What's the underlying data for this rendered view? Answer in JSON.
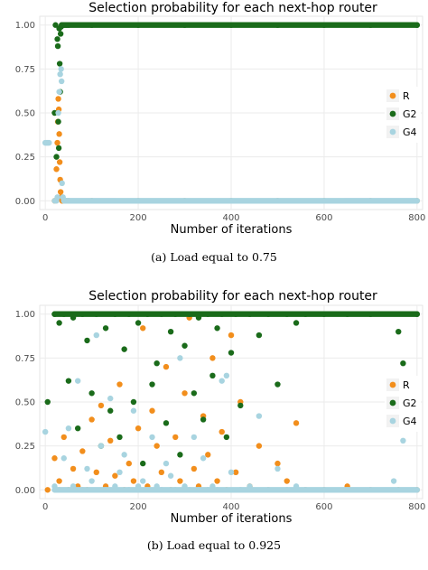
{
  "chart_data": [
    {
      "type": "scatter",
      "title": "Selection probability for each next-hop router",
      "xlabel": "Number of iterations",
      "ylabel": "",
      "xlim": [
        -12,
        812
      ],
      "ylim": [
        -0.05,
        1.05
      ],
      "xticks": [
        "0",
        "200",
        "400",
        "600",
        "800"
      ],
      "yticks": [
        "0.00",
        "0.25",
        "0.50",
        "0.75",
        "1.00"
      ],
      "legend_position": "right",
      "grid": true,
      "caption": "(a) Load equal to 0.75",
      "series": [
        {
          "name": "R",
          "color": "#f28e1c",
          "x": [
            20,
            24,
            26,
            27,
            28,
            29,
            30,
            31,
            32,
            33,
            34,
            35,
            36,
            37,
            38,
            40,
            45,
            50,
            100,
            200,
            300,
            400,
            500,
            600,
            700,
            800
          ],
          "y": [
            0.0,
            0.18,
            0.33,
            0.45,
            0.58,
            0.52,
            0.38,
            0.22,
            0.12,
            0.05,
            0.02,
            0.01,
            0.0,
            0.0,
            0.0,
            0.0,
            0.0,
            0.0,
            0.0,
            0.0,
            0.0,
            0.0,
            0.0,
            0.0,
            0.0,
            0.0
          ]
        },
        {
          "name": "G2",
          "color": "#1a6b1a",
          "x": [
            20,
            22,
            24,
            26,
            27,
            28,
            29,
            30,
            31,
            32,
            33,
            34,
            35,
            36,
            38,
            40,
            45,
            50,
            100,
            200,
            300,
            400,
            500,
            600,
            700,
            800
          ],
          "y": [
            0.5,
            1.0,
            0.25,
            0.92,
            0.88,
            0.45,
            0.3,
            0.98,
            0.78,
            0.62,
            0.95,
            0.99,
            1.0,
            1.0,
            1.0,
            1.0,
            1.0,
            1.0,
            1.0,
            1.0,
            1.0,
            1.0,
            1.0,
            1.0,
            1.0,
            1.0
          ]
        },
        {
          "name": "G4",
          "color": "#a8d4e0",
          "x": [
            0,
            2,
            4,
            6,
            8,
            20,
            24,
            26,
            28,
            30,
            32,
            34,
            35,
            36,
            38,
            40,
            45,
            50,
            100,
            200,
            300,
            400,
            500,
            600,
            700,
            800
          ],
          "y": [
            0.33,
            0.33,
            0.33,
            0.33,
            0.33,
            0.0,
            0.0,
            0.02,
            0.5,
            0.62,
            0.72,
            0.75,
            0.68,
            0.1,
            0.02,
            0.0,
            0.0,
            0.0,
            0.0,
            0.0,
            0.0,
            0.0,
            0.0,
            0.0,
            0.0,
            0.0
          ]
        }
      ]
    },
    {
      "type": "scatter",
      "title": "Selection probability for each next-hop router",
      "xlabel": "Number of iterations",
      "ylabel": "",
      "xlim": [
        -12,
        812
      ],
      "ylim": [
        -0.05,
        1.05
      ],
      "xticks": [
        "0",
        "200",
        "400",
        "600",
        "800"
      ],
      "yticks": [
        "0.00",
        "0.25",
        "0.50",
        "0.75",
        "1.00"
      ],
      "legend_position": "right",
      "grid": true,
      "caption": "(b) Load equal to 0.925",
      "series": [
        {
          "name": "R",
          "color": "#f28e1c",
          "x": [
            5,
            20,
            30,
            40,
            50,
            60,
            70,
            80,
            90,
            100,
            110,
            120,
            130,
            140,
            150,
            160,
            170,
            180,
            190,
            200,
            210,
            220,
            230,
            240,
            250,
            260,
            270,
            280,
            290,
            300,
            310,
            320,
            330,
            340,
            350,
            360,
            370,
            380,
            390,
            400,
            410,
            420,
            440,
            460,
            480,
            500,
            520,
            540,
            560,
            600,
            650,
            700,
            760,
            800
          ],
          "y": [
            0.0,
            0.18,
            0.05,
            0.3,
            0.0,
            0.12,
            0.02,
            0.22,
            0.0,
            0.4,
            0.1,
            0.48,
            0.02,
            0.28,
            0.08,
            0.6,
            0.0,
            0.15,
            0.05,
            0.35,
            0.92,
            0.02,
            0.45,
            0.25,
            0.1,
            0.7,
            0.0,
            0.3,
            0.05,
            0.55,
            0.98,
            0.12,
            0.02,
            0.42,
            0.2,
            0.75,
            0.05,
            0.33,
            0.0,
            0.88,
            0.1,
            0.5,
            0.02,
            0.25,
            0.0,
            0.15,
            0.05,
            0.38,
            0.0,
            0.0,
            0.02,
            0.0,
            0.0,
            0.0
          ]
        },
        {
          "name": "G2",
          "color": "#1a6b1a",
          "x": [
            5,
            20,
            30,
            40,
            50,
            60,
            70,
            80,
            90,
            100,
            110,
            120,
            130,
            140,
            150,
            160,
            170,
            180,
            190,
            200,
            210,
            220,
            230,
            240,
            250,
            260,
            270,
            280,
            290,
            300,
            310,
            320,
            330,
            340,
            350,
            360,
            370,
            380,
            390,
            400,
            410,
            420,
            440,
            460,
            480,
            500,
            520,
            540,
            560,
            600,
            650,
            700,
            760,
            770,
            800
          ],
          "y": [
            0.5,
            1.0,
            0.95,
            1.0,
            0.62,
            0.98,
            0.35,
            1.0,
            0.85,
            0.55,
            1.0,
            0.25,
            0.92,
            0.45,
            1.0,
            0.3,
            0.8,
            1.0,
            0.5,
            0.95,
            0.15,
            1.0,
            0.6,
            0.72,
            1.0,
            0.38,
            0.9,
            1.0,
            0.2,
            0.82,
            1.0,
            0.55,
            0.98,
            0.4,
            1.0,
            0.65,
            0.92,
            1.0,
            0.3,
            0.78,
            1.0,
            0.48,
            1.0,
            0.88,
            1.0,
            0.6,
            1.0,
            0.95,
            1.0,
            1.0,
            1.0,
            1.0,
            0.9,
            0.72,
            1.0
          ]
        },
        {
          "name": "G4",
          "color": "#a8d4e0",
          "x": [
            0,
            20,
            30,
            40,
            50,
            60,
            70,
            80,
            90,
            100,
            110,
            120,
            130,
            140,
            150,
            160,
            170,
            180,
            190,
            200,
            210,
            220,
            230,
            240,
            250,
            260,
            270,
            280,
            290,
            300,
            310,
            320,
            330,
            340,
            350,
            360,
            370,
            380,
            390,
            400,
            420,
            440,
            460,
            480,
            500,
            520,
            540,
            560,
            600,
            650,
            700,
            750,
            760,
            770,
            800
          ],
          "y": [
            0.33,
            0.02,
            0.0,
            0.18,
            0.35,
            0.02,
            0.62,
            0.0,
            0.12,
            0.05,
            0.88,
            0.25,
            0.0,
            0.52,
            0.02,
            0.1,
            0.2,
            0.0,
            0.45,
            0.02,
            0.05,
            0.0,
            0.3,
            0.02,
            0.0,
            0.15,
            0.08,
            0.0,
            0.75,
            0.02,
            0.0,
            0.3,
            0.0,
            0.18,
            0.0,
            0.02,
            0.0,
            0.62,
            0.65,
            0.1,
            0.0,
            0.02,
            0.42,
            0.0,
            0.12,
            0.0,
            0.02,
            0.0,
            0.0,
            0.0,
            0.0,
            0.05,
            0.45,
            0.28,
            0.0
          ]
        }
      ]
    }
  ]
}
